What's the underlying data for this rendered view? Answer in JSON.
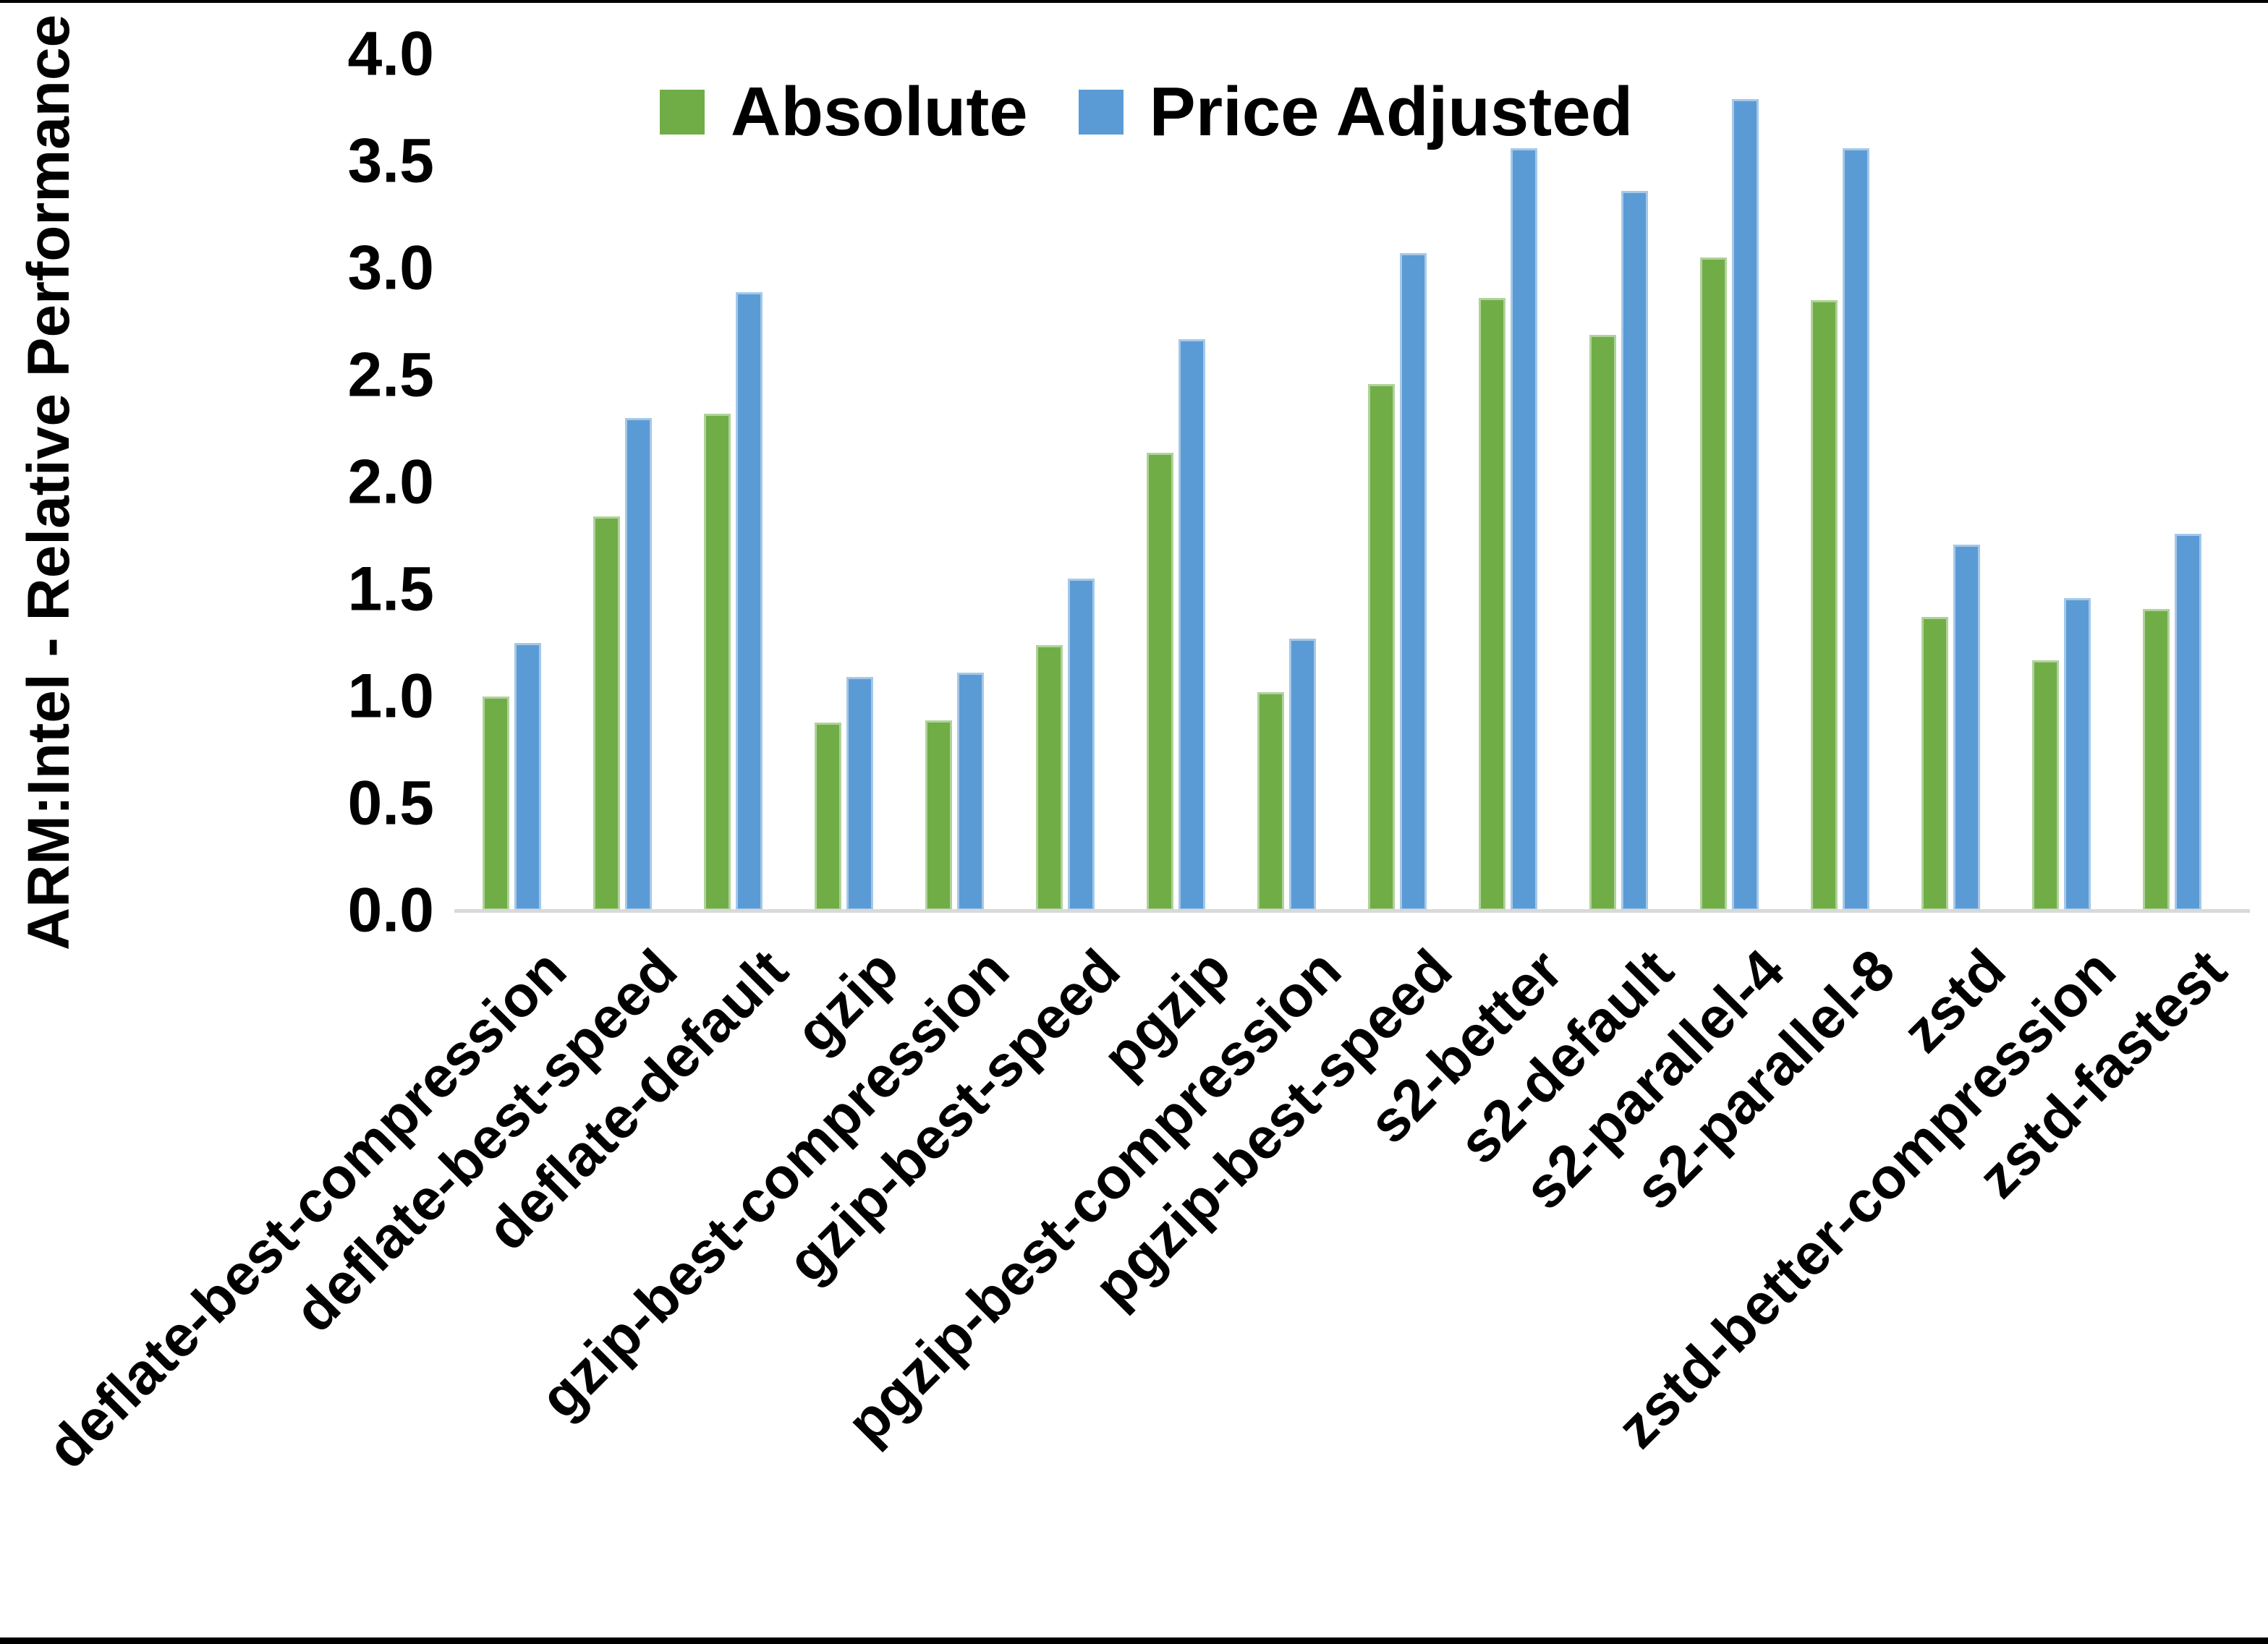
{
  "chart_data": {
    "type": "bar",
    "title": "",
    "xlabel": "",
    "ylabel": "ARM:Intel - Relative Performance",
    "ylim": [
      0.0,
      4.0
    ],
    "ytick_step": 0.5,
    "yticks": [
      "0.0",
      "0.5",
      "1.0",
      "1.5",
      "2.0",
      "2.5",
      "3.0",
      "3.5",
      "4.0"
    ],
    "grid": false,
    "legend_position": "top-center",
    "background": "#ffffff",
    "axis_line_color": "#d9d9d9",
    "categories": [
      "deflate-best-compression",
      "deflate-best-speed",
      "deflate-default",
      "gzip",
      "gzip-best-compression",
      "gzip-best-speed",
      "pgzip",
      "pgzip-best-compression",
      "pgzip-best-speed",
      "s2-better",
      "s2-default",
      "s2-parallel-4",
      "s2-parallel-8",
      "zstd",
      "zstd-better-compression",
      "zstd-fastest"
    ],
    "series": [
      {
        "name": "Absolute",
        "color": "#70ad47",
        "values": [
          1.0,
          1.84,
          2.32,
          0.88,
          0.89,
          1.24,
          2.14,
          1.02,
          2.46,
          2.86,
          2.69,
          3.05,
          2.85,
          1.37,
          1.17,
          1.41
        ]
      },
      {
        "name": "Price Adjusted",
        "color": "#5b9bd5",
        "values": [
          1.25,
          2.3,
          2.89,
          1.09,
          1.11,
          1.55,
          2.67,
          1.27,
          3.07,
          3.56,
          3.36,
          3.79,
          3.56,
          1.71,
          1.46,
          1.76
        ]
      }
    ]
  }
}
